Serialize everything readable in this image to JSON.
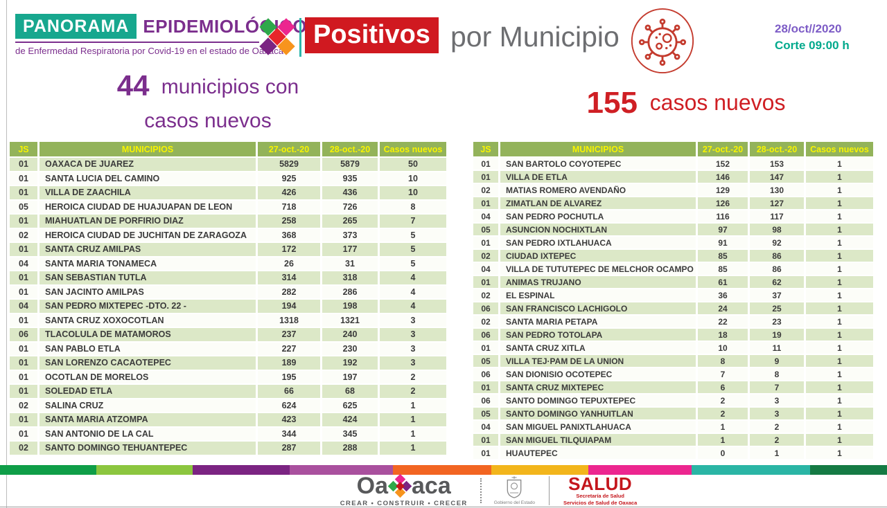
{
  "header": {
    "brand_panorama": "PANORAMA",
    "brand_epidemiologico": "EPIDEMIOLÓGICO",
    "brand_subtitle": "de Enfermedad Respiratoria por Covid-19 en el estado de Oaxaca",
    "title_badge": "Positivos",
    "title_rest": "por Municipio",
    "date_line": "28/oct//2020",
    "cutoff_line": "Corte 09:00 h"
  },
  "summary": {
    "left_number": "44",
    "left_text": "municipios con",
    "left_text2": "casos nuevos",
    "right_number": "155",
    "right_text": "casos nuevos"
  },
  "table_headers": [
    "JS",
    "MUNICIPIOS",
    "27-oct.-20",
    "28-oct.-20",
    "Casos nuevos"
  ],
  "left_table": {
    "green_first": true,
    "rows": [
      [
        "01",
        "OAXACA DE JUAREZ",
        "5829",
        "5879",
        "50"
      ],
      [
        "01",
        "SANTA LUCIA DEL CAMINO",
        "925",
        "935",
        "10"
      ],
      [
        "01",
        "VILLA DE ZAACHILA",
        "426",
        "436",
        "10"
      ],
      [
        "05",
        "HEROICA CIUDAD DE HUAJUAPAN DE LEON",
        "718",
        "726",
        "8"
      ],
      [
        "01",
        "MIAHUATLAN DE PORFIRIO DIAZ",
        "258",
        "265",
        "7"
      ],
      [
        "02",
        "HEROICA CIUDAD DE JUCHITAN DE ZARAGOZA",
        "368",
        "373",
        "5"
      ],
      [
        "01",
        "SANTA CRUZ AMILPAS",
        "172",
        "177",
        "5"
      ],
      [
        "04",
        "SANTA MARIA TONAMECA",
        "26",
        "31",
        "5"
      ],
      [
        "01",
        "SAN SEBASTIAN TUTLA",
        "314",
        "318",
        "4"
      ],
      [
        "01",
        "SAN JACINTO AMILPAS",
        "282",
        "286",
        "4"
      ],
      [
        "04",
        "SAN PEDRO MIXTEPEC -DTO. 22 -",
        "194",
        "198",
        "4"
      ],
      [
        "01",
        "SANTA CRUZ XOXOCOTLAN",
        "1318",
        "1321",
        "3"
      ],
      [
        "06",
        "TLACOLULA DE MATAMOROS",
        "237",
        "240",
        "3"
      ],
      [
        "01",
        "SAN PABLO ETLA",
        "227",
        "230",
        "3"
      ],
      [
        "01",
        "SAN LORENZO CACAOTEPEC",
        "189",
        "192",
        "3"
      ],
      [
        "01",
        "OCOTLAN DE MORELOS",
        "195",
        "197",
        "2"
      ],
      [
        "01",
        "SOLEDAD ETLA",
        "66",
        "68",
        "2"
      ],
      [
        "02",
        "SALINA CRUZ",
        "624",
        "625",
        "1"
      ],
      [
        "01",
        "SANTA MARIA ATZOMPA",
        "423",
        "424",
        "1"
      ],
      [
        "01",
        "SAN ANTONIO DE LA CAL",
        "344",
        "345",
        "1"
      ],
      [
        "02",
        "SANTO DOMINGO TEHUANTEPEC",
        "287",
        "288",
        "1"
      ]
    ]
  },
  "right_table": {
    "green_first": false,
    "rows": [
      [
        "01",
        "SAN BARTOLO COYOTEPEC",
        "152",
        "153",
        "1"
      ],
      [
        "01",
        "VILLA DE ETLA",
        "146",
        "147",
        "1"
      ],
      [
        "02",
        "MATIAS ROMERO AVENDAÑO",
        "129",
        "130",
        "1"
      ],
      [
        "01",
        "ZIMATLAN DE ALVAREZ",
        "126",
        "127",
        "1"
      ],
      [
        "04",
        "SAN PEDRO POCHUTLA",
        "116",
        "117",
        "1"
      ],
      [
        "05",
        "ASUNCION NOCHIXTLAN",
        "97",
        "98",
        "1"
      ],
      [
        "01",
        "SAN PEDRO IXTLAHUACA",
        "91",
        "92",
        "1"
      ],
      [
        "02",
        "CIUDAD IXTEPEC",
        "85",
        "86",
        "1"
      ],
      [
        "04",
        "VILLA DE TUTUTEPEC DE MELCHOR OCAMPO",
        "85",
        "86",
        "1"
      ],
      [
        "01",
        "ANIMAS TRUJANO",
        "61",
        "62",
        "1"
      ],
      [
        "02",
        "EL ESPINAL",
        "36",
        "37",
        "1"
      ],
      [
        "06",
        "SAN FRANCISCO LACHIGOLO",
        "24",
        "25",
        "1"
      ],
      [
        "02",
        "SANTA MARIA PETAPA",
        "22",
        "23",
        "1"
      ],
      [
        "06",
        "SAN PEDRO TOTOLAPA",
        "18",
        "19",
        "1"
      ],
      [
        "01",
        "SANTA CRUZ XITLA",
        "10",
        "11",
        "1"
      ],
      [
        "05",
        "VILLA TEJ·PAM DE LA UNION",
        "8",
        "9",
        "1"
      ],
      [
        "06",
        "SAN DIONISIO OCOTEPEC",
        "7",
        "8",
        "1"
      ],
      [
        "01",
        "SANTA CRUZ MIXTEPEC",
        "6",
        "7",
        "1"
      ],
      [
        "06",
        "SANTO DOMINGO TEPUXTEPEC",
        "2",
        "3",
        "1"
      ],
      [
        "05",
        "SANTO DOMINGO YANHUITLAN",
        "2",
        "3",
        "1"
      ],
      [
        "04",
        "SAN MIGUEL PANIXTLAHUACA",
        "1",
        "2",
        "1"
      ],
      [
        "01",
        "SAN MIGUEL TILQUIAPAM",
        "1",
        "2",
        "1"
      ],
      [
        "01",
        "HUAUTEPEC",
        "0",
        "1",
        "1"
      ]
    ]
  },
  "footer": {
    "oaxaca_pre": "Oa",
    "oaxaca_post": "aca",
    "oaxaca_tagline": "CREAR • CONSTRUIR • CRECER",
    "gobierno_caption": "Gobierno del Estado",
    "salud_title": "SALUD",
    "salud_sub1": "Secretaría de Salud",
    "salud_sub2": "Servicios de Salud de Oaxaca"
  },
  "colors": {
    "teal_box": "#17a78e",
    "purple": "#7b2e8d",
    "red_badge": "#d01920",
    "red_text": "#cf1f24",
    "table_header_green": "#93b35a",
    "table_row_green": "#dce8c7",
    "header_text_yellow": "#f8f400",
    "date_violet": "#7d5cc6",
    "cutoff_teal": "#00a98c",
    "title_gray": "#6d6e71"
  }
}
